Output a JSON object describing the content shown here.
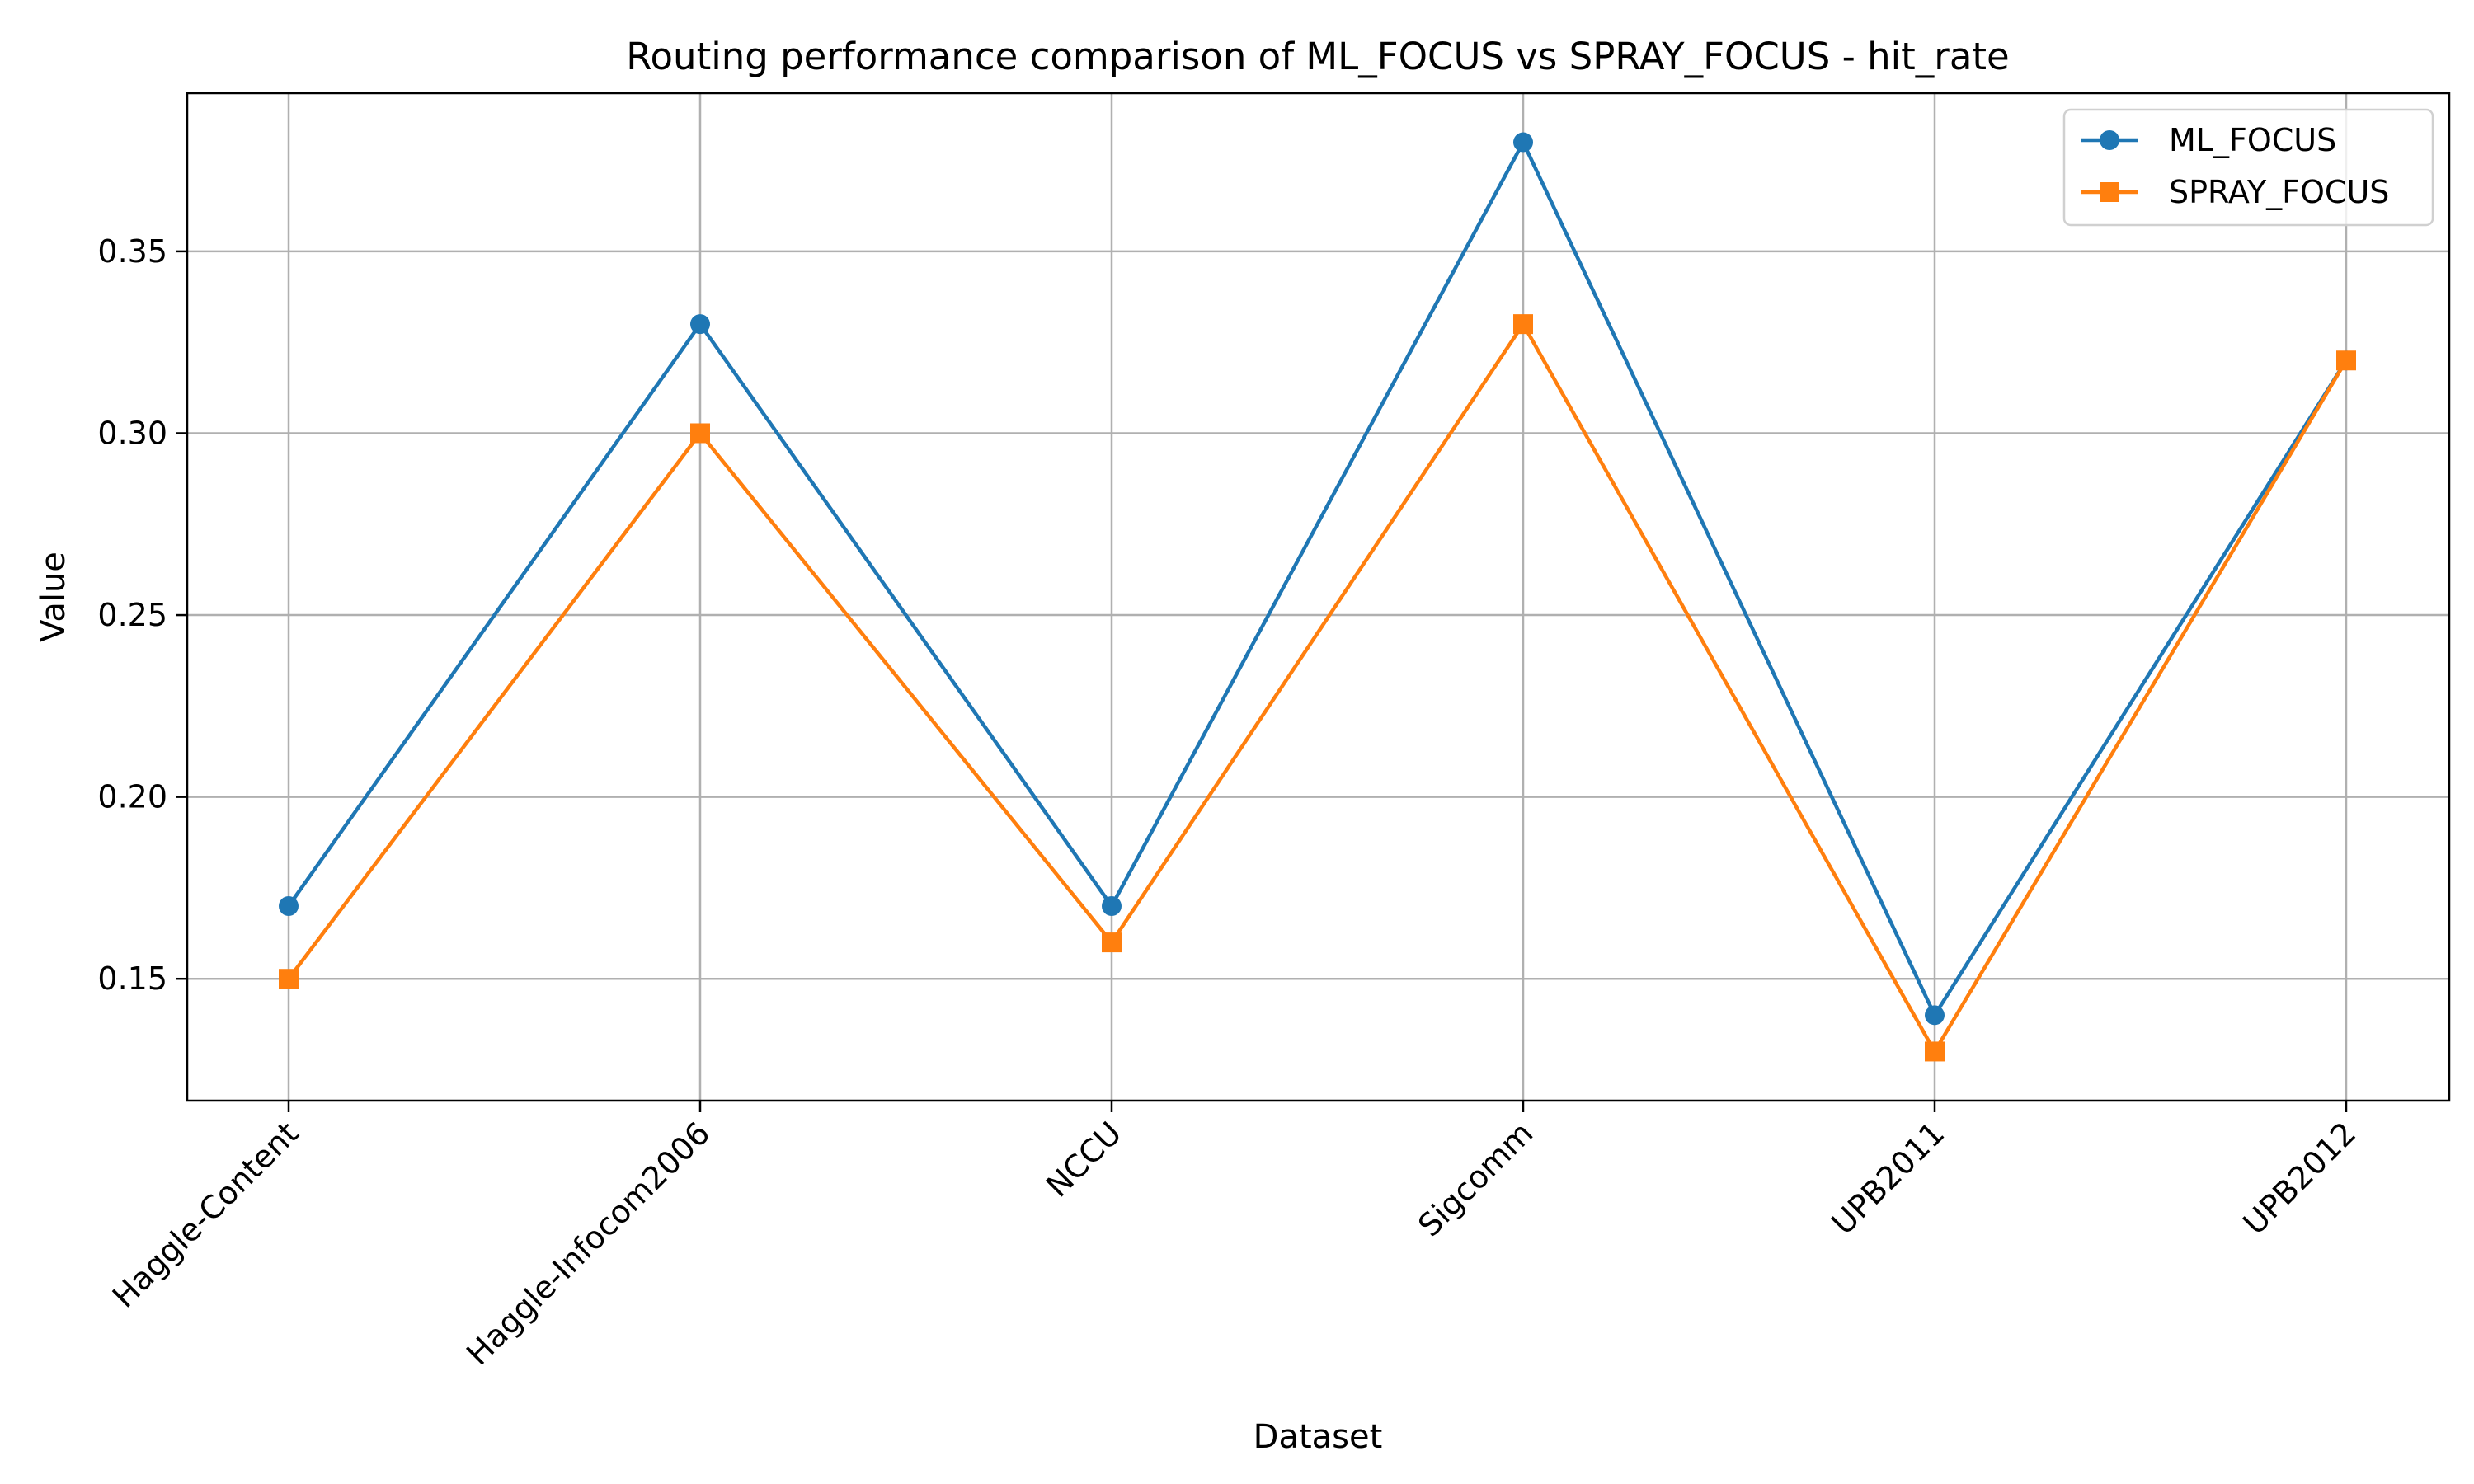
{
  "chart_data": {
    "type": "line",
    "title": "Routing performance comparison of ML_FOCUS vs SPRAY_FOCUS - hit_rate",
    "xlabel": "Dataset",
    "ylabel": "Value",
    "categories": [
      "Haggle-Content",
      "Haggle-Infocom2006",
      "NCCU",
      "Sigcomm",
      "UPB2011",
      "UPB2012"
    ],
    "ylim": [
      0.1165,
      0.3935
    ],
    "yticks": [
      0.15,
      0.2,
      0.25,
      0.3,
      0.35
    ],
    "ytick_labels": [
      "0.15",
      "0.20",
      "0.25",
      "0.30",
      "0.35"
    ],
    "grid": true,
    "legend_position": "top-right",
    "series": [
      {
        "name": "ML_FOCUS",
        "marker": "circle",
        "color": "#1f77b4",
        "values": [
          0.17,
          0.33,
          0.17,
          0.38,
          0.14,
          0.32
        ]
      },
      {
        "name": "SPRAY_FOCUS",
        "marker": "square",
        "color": "#ff7f0e",
        "values": [
          0.15,
          0.3,
          0.16,
          0.33,
          0.13,
          0.32
        ]
      }
    ]
  }
}
